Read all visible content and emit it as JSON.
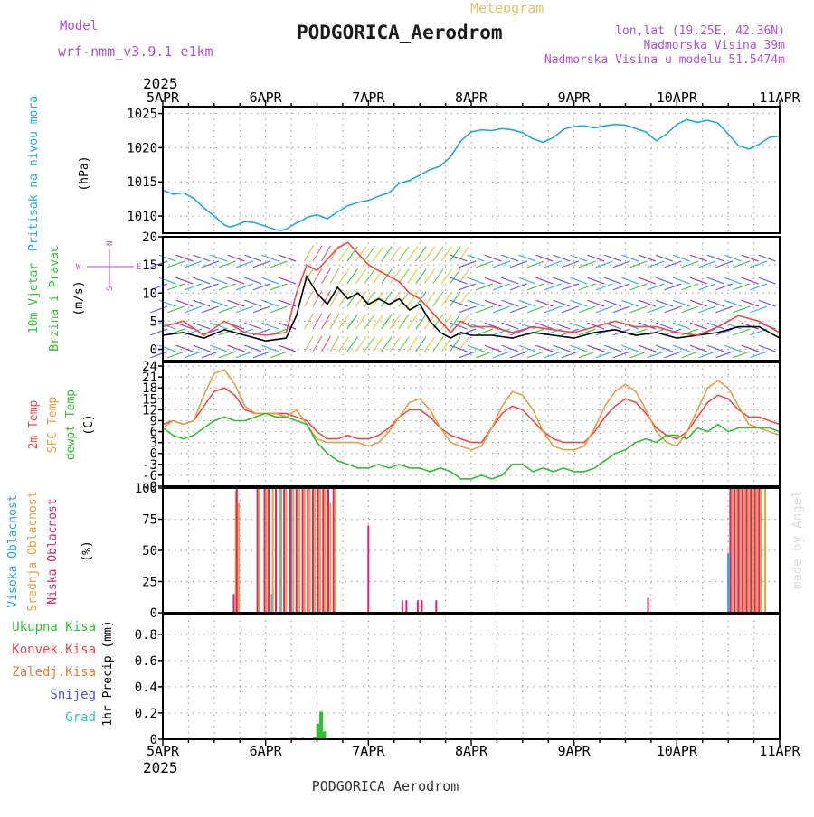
{
  "header": {
    "model_label": "Model",
    "model_name": "wrf-nmm_v3.9.1 e1km",
    "meteogram_label": "Meteogram",
    "station_title": "PODGORICA_Aerodrom",
    "coords": "lon,lat (19.25E, 42.36N)",
    "elevation": "Nadmorska Visina 39m",
    "model_elevation": "Nadmorska Visina u modelu 51.5474m",
    "footer_title": "PODGORICA_Aerodrom",
    "credit": "made by Angel",
    "colors": {
      "purple": "#b050d8",
      "gold": "#e8c060",
      "credit": "#d8ded8"
    }
  },
  "time_axis": {
    "year": "2025",
    "days": [
      "5APR",
      "6APR",
      "7APR",
      "8APR",
      "9APR",
      "10APR",
      "11APR"
    ]
  },
  "panels": {
    "pressure": {
      "label1": "Pritisak na nivou mora",
      "label1_color": "#20a8e0",
      "label2": "(hPa)",
      "ticks": [
        "1010",
        "1015",
        "1020",
        "1025"
      ]
    },
    "wind": {
      "label1": "10m Vjetar",
      "label2": "Brzina i Pravac",
      "label_color": "#30c030",
      "unit": "(m/s)",
      "compass_w": "W",
      "compass_e": "E",
      "compass_n": "N",
      "compass_s": "S",
      "ticks": [
        "0",
        "5",
        "10",
        "15",
        "20"
      ]
    },
    "temp": {
      "label1": "2m Temp",
      "label1_color": "#f04848",
      "label2": "SFC Temp",
      "label2_color": "#e8a040",
      "label3": "dewpt Temp",
      "label3_color": "#30c030",
      "unit": "(C)",
      "ticks": [
        "-9",
        "-6",
        "-3",
        "0",
        "3",
        "6",
        "9",
        "12",
        "15",
        "18",
        "21",
        "24"
      ]
    },
    "cloud": {
      "label1": "Visoka Oblacnost",
      "label1_color": "#20a8e0",
      "label2": "Srednja Oblacnost",
      "label2_color": "#e8a040",
      "label3": "Niska Oblacnost",
      "label3_color": "#e02070",
      "unit": "(%)",
      "ticks": [
        "0",
        "25",
        "50",
        "75",
        "100"
      ]
    },
    "precip": {
      "legend": [
        {
          "label": "Ukupna Kisa",
          "color": "#30c030"
        },
        {
          "label": "Konvek.Kisa",
          "color": "#f04848"
        },
        {
          "label": "Zaledj.Kisa",
          "color": "#f07830"
        },
        {
          "label": "Snijeg",
          "color": "#5050f0"
        },
        {
          "label": "Grad",
          "color": "#30c8c0"
        }
      ],
      "unit": "1hr Precip (mm)",
      "ticks": [
        "0",
        "0.2",
        "0.4",
        "0.6",
        "0.8"
      ]
    }
  },
  "chart_data": [
    {
      "type": "line",
      "title": "Pritisak na nivou mora",
      "ylabel": "(hPa)",
      "ylim": [
        1007.5,
        1026
      ],
      "x_unit": "days since 5APR 00UTC",
      "x": [
        0,
        0.1,
        0.2,
        0.3,
        0.4,
        0.5,
        0.6,
        0.65,
        0.7,
        0.8,
        0.9,
        1.0,
        1.1,
        1.15,
        1.2,
        1.3,
        1.35,
        1.4,
        1.5,
        1.6,
        1.7,
        1.8,
        1.9,
        2.0,
        2.1,
        2.2,
        2.3,
        2.4,
        2.5,
        2.6,
        2.7,
        2.8,
        2.9,
        3.0,
        3.1,
        3.2,
        3.3,
        3.4,
        3.5,
        3.6,
        3.7,
        3.8,
        3.9,
        4.0,
        4.1,
        4.2,
        4.3,
        4.4,
        4.5,
        4.6,
        4.7,
        4.8,
        4.9,
        5.0,
        5.1,
        5.2,
        5.3,
        5.4,
        5.5,
        5.6,
        5.7,
        5.8,
        5.9,
        6.0
      ],
      "series": [
        {
          "name": "Pritisak na nivou mora",
          "color": "#20a8e0",
          "values": [
            1013.8,
            1013.2,
            1013.4,
            1012.6,
            1011.2,
            1010.0,
            1008.7,
            1008.4,
            1008.6,
            1009.2,
            1009.0,
            1008.5,
            1008.0,
            1007.9,
            1008.1,
            1009.0,
            1009.3,
            1009.8,
            1010.2,
            1009.6,
            1010.6,
            1011.5,
            1012.0,
            1012.3,
            1012.9,
            1013.4,
            1014.8,
            1015.2,
            1016.0,
            1016.8,
            1017.3,
            1018.7,
            1021.0,
            1022.3,
            1022.6,
            1022.5,
            1022.8,
            1022.6,
            1022.2,
            1021.3,
            1020.8,
            1021.5,
            1022.7,
            1023.1,
            1023.2,
            1022.9,
            1023.2,
            1023.4,
            1023.3,
            1022.8,
            1022.3,
            1021.0,
            1022.0,
            1023.4,
            1024.1,
            1023.7,
            1024.0,
            1023.6,
            1022.0,
            1020.3,
            1019.8,
            1020.5,
            1021.5,
            1021.7
          ]
        }
      ]
    },
    {
      "type": "line",
      "title": "10m Vjetar Brzina i Pravac",
      "ylabel": "(m/s)",
      "ylim": [
        -2,
        20
      ],
      "x": [
        0,
        0.2,
        0.4,
        0.6,
        0.8,
        1.0,
        1.2,
        1.3,
        1.4,
        1.5,
        1.6,
        1.7,
        1.8,
        1.9,
        2.0,
        2.1,
        2.2,
        2.3,
        2.4,
        2.5,
        2.6,
        2.7,
        2.8,
        2.9,
        3.0,
        3.2,
        3.4,
        3.6,
        3.8,
        4.0,
        4.2,
        4.4,
        4.6,
        4.8,
        5.0,
        5.2,
        5.4,
        5.6,
        5.8,
        6.0
      ],
      "series": [
        {
          "name": "speed",
          "color": "#000000",
          "values": [
            2.5,
            3,
            2,
            3.5,
            2.5,
            1.5,
            2,
            6,
            13,
            10,
            8,
            11,
            9,
            10,
            8,
            9,
            8,
            9,
            7,
            8,
            5,
            3,
            2,
            3,
            2.5,
            2.5,
            2,
            3,
            2.5,
            2,
            3,
            3.5,
            2.5,
            3,
            2,
            2.5,
            3,
            4,
            4,
            2
          ]
        },
        {
          "name": "gust",
          "color": "#f04848",
          "values": [
            4,
            5,
            2.5,
            5,
            3,
            2.5,
            3,
            10,
            15,
            14,
            16,
            18,
            19,
            17,
            15,
            14,
            13,
            12,
            10,
            9,
            7,
            5,
            3,
            5,
            4,
            4,
            3,
            4,
            3.5,
            3,
            4,
            5,
            4,
            4,
            3,
            2.5,
            4,
            6,
            5,
            3
          ]
        }
      ]
    },
    {
      "type": "line",
      "title": "2m Temp / SFC Temp / dewpt Temp",
      "ylabel": "(C)",
      "ylim": [
        -9,
        25
      ],
      "x": [
        0,
        0.1,
        0.2,
        0.3,
        0.4,
        0.5,
        0.6,
        0.7,
        0.8,
        0.9,
        1.0,
        1.1,
        1.2,
        1.3,
        1.4,
        1.5,
        1.6,
        1.7,
        1.8,
        1.9,
        2.0,
        2.1,
        2.2,
        2.3,
        2.4,
        2.5,
        2.6,
        2.7,
        2.8,
        2.9,
        3.0,
        3.1,
        3.2,
        3.3,
        3.4,
        3.5,
        3.6,
        3.7,
        3.8,
        3.9,
        4.0,
        4.1,
        4.2,
        4.3,
        4.4,
        4.5,
        4.6,
        4.7,
        4.8,
        4.9,
        5.0,
        5.1,
        5.2,
        5.3,
        5.4,
        5.5,
        5.6,
        5.7,
        5.8,
        5.9,
        6.0
      ],
      "series": [
        {
          "name": "2m Temp",
          "color": "#f04848",
          "values": [
            8,
            9,
            8,
            9,
            13,
            17,
            18,
            16,
            12,
            11,
            11,
            11,
            11,
            10,
            9,
            6,
            4,
            4,
            5,
            4,
            4,
            5,
            7,
            10,
            12,
            12,
            10,
            7,
            5,
            4,
            3,
            3,
            7,
            11,
            13,
            12,
            9,
            6,
            4,
            3,
            3,
            3,
            6,
            10,
            13,
            15,
            14,
            11,
            7,
            5,
            4,
            6,
            10,
            14,
            16,
            15,
            12,
            10,
            10,
            9,
            8
          ]
        },
        {
          "name": "SFC Temp",
          "color": "#e8a040",
          "values": [
            7,
            9,
            8,
            9,
            16,
            22,
            23,
            19,
            13,
            11,
            11,
            11,
            10,
            12,
            8,
            4,
            3,
            3,
            3,
            3,
            2,
            3,
            6,
            10,
            14,
            15,
            12,
            7,
            3,
            2,
            1,
            2,
            7,
            13,
            17,
            16,
            12,
            6,
            2,
            1,
            1,
            2,
            7,
            13,
            17,
            19,
            17,
            12,
            6,
            3,
            2,
            6,
            12,
            18,
            20,
            18,
            13,
            8,
            7,
            6,
            5
          ]
        },
        {
          "name": "dewpt Temp",
          "color": "#30c030",
          "values": [
            7,
            5,
            4,
            5,
            7,
            9,
            10,
            9,
            9,
            10,
            11,
            10,
            10,
            9,
            8,
            3,
            0,
            -2,
            -3,
            -4,
            -4,
            -3,
            -4,
            -3,
            -4,
            -4,
            -5,
            -4,
            -5,
            -7,
            -7,
            -6,
            -7,
            -6,
            -3,
            -3,
            -5,
            -4,
            -5,
            -4,
            -5,
            -5,
            -4,
            -2,
            0,
            1,
            3,
            4,
            3,
            5,
            5,
            4,
            7,
            6,
            8,
            6,
            7,
            7,
            7,
            7,
            6
          ]
        }
      ]
    },
    {
      "type": "bar",
      "title": "Visoka / Srednja / Niska Oblacnost",
      "ylabel": "(%)",
      "ylim": [
        0,
        100
      ],
      "series": [
        {
          "name": "Visoka Oblacnost",
          "color": "#20a8e0",
          "x": [
            1.06,
            1.07,
            1.15,
            1.25,
            5.5,
            5.52,
            5.54,
            5.56,
            5.58,
            5.6,
            5.62,
            5.64,
            5.66
          ],
          "values": [
            15,
            18,
            100,
            100,
            48,
            100,
            100,
            100,
            100,
            100,
            100,
            100,
            100
          ]
        },
        {
          "name": "Srednja Oblacnost",
          "color": "#e8a040",
          "x": [
            0.71,
            0.74,
            0.94,
            1.01,
            1.07,
            1.14,
            1.2,
            1.27,
            1.33,
            1.38,
            1.43,
            1.48,
            1.53,
            1.58,
            1.63,
            1.68,
            5.54,
            5.58,
            5.62,
            5.66,
            5.7,
            5.74,
            5.78,
            5.82,
            5.86
          ],
          "values": [
            98,
            88,
            100,
            100,
            100,
            100,
            100,
            100,
            100,
            100,
            100,
            100,
            100,
            100,
            88,
            100,
            100,
            100,
            100,
            100,
            100,
            100,
            100,
            100,
            100
          ]
        },
        {
          "name": "Niska Oblacnost",
          "color": "#e02070",
          "x": [
            0.69,
            0.72,
            0.92,
            0.99,
            1.03,
            1.1,
            1.18,
            1.24,
            1.3,
            1.36,
            1.41,
            1.46,
            1.51,
            1.56,
            1.61,
            1.66,
            2.0,
            2.33,
            2.37,
            2.48,
            2.52,
            2.66,
            4.72,
            5.52,
            5.56,
            5.6,
            5.64,
            5.68,
            5.72,
            5.76,
            5.8
          ],
          "values": [
            15,
            100,
            100,
            100,
            100,
            100,
            100,
            100,
            100,
            100,
            100,
            100,
            100,
            100,
            100,
            100,
            70,
            10,
            10,
            10,
            10,
            10,
            12,
            100,
            100,
            100,
            100,
            100,
            100,
            100,
            100
          ]
        }
      ]
    },
    {
      "type": "bar",
      "title": "1hr Precip",
      "ylabel": "1hr Precip (mm)",
      "ylim": [
        0,
        0.95
      ],
      "series": [
        {
          "name": "Ukupna Kisa",
          "color": "#30c030",
          "x": [
            1.36,
            1.48,
            1.51,
            1.54,
            1.57
          ],
          "values": [
            0.01,
            0.02,
            0.12,
            0.21,
            0.06
          ]
        },
        {
          "name": "Konvek.Kisa",
          "color": "#f04848",
          "x": [
            1.26,
            1.28
          ],
          "values": [
            0.01,
            0.01
          ]
        }
      ]
    }
  ]
}
